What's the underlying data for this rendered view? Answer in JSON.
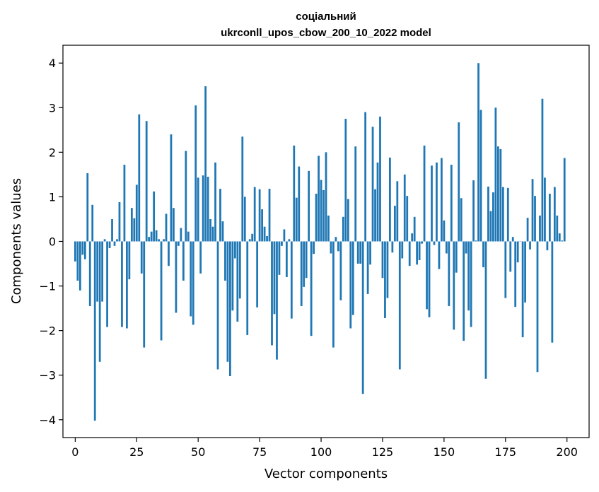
{
  "chart_data": {
    "type": "bar",
    "title": "соціальний",
    "subtitle": "ukrconll_upos_cbow_200_10_2022 model",
    "xlabel": "Vector components",
    "ylabel": "Components values",
    "xlim": [
      -5,
      209
    ],
    "ylim": [
      -4.4,
      4.4
    ],
    "xticks": [
      0,
      25,
      50,
      75,
      100,
      125,
      150,
      175,
      200
    ],
    "yticks": [
      -4,
      -3,
      -2,
      -1,
      0,
      1,
      2,
      3,
      4
    ],
    "color": "#1f77b4",
    "x_start": 0,
    "values": [
      -0.45,
      -0.88,
      -1.1,
      -0.3,
      -0.4,
      1.53,
      -1.45,
      0.82,
      -4.02,
      -1.35,
      -2.7,
      -1.35,
      0.05,
      -1.92,
      -0.15,
      0.5,
      -0.1,
      0.05,
      0.88,
      -1.92,
      1.72,
      -1.95,
      -0.85,
      0.75,
      0.52,
      1.27,
      2.85,
      -0.72,
      -2.38,
      2.7,
      0.1,
      0.22,
      1.12,
      0.25,
      0.05,
      -2.22,
      0.05,
      0.62,
      -0.55,
      2.4,
      0.75,
      -1.6,
      -0.1,
      0.3,
      -0.88,
      2.03,
      0.22,
      -1.68,
      -1.87,
      3.05,
      1.43,
      -0.72,
      1.48,
      3.48,
      1.45,
      0.5,
      0.33,
      1.77,
      -2.87,
      1.18,
      0.45,
      -0.88,
      -2.7,
      -3.02,
      -1.55,
      -0.38,
      -1.8,
      -1.28,
      2.35,
      1.0,
      -2.1,
      0.05,
      0.17,
      1.22,
      -1.48,
      1.17,
      0.72,
      0.33,
      0.12,
      1.18,
      -2.33,
      -1.63,
      -2.65,
      -0.75,
      -0.1,
      0.27,
      -0.8,
      0.05,
      -1.73,
      2.15,
      0.98,
      1.68,
      -1.45,
      -1.02,
      -0.82,
      1.58,
      -2.12,
      -0.28,
      1.07,
      1.92,
      1.38,
      1.15,
      2.0,
      0.58,
      -0.27,
      -2.38,
      0.1,
      -0.22,
      -1.32,
      0.55,
      2.75,
      0.95,
      -1.95,
      -1.65,
      2.13,
      -0.5,
      -0.5,
      -3.42,
      2.9,
      -1.18,
      -0.52,
      2.57,
      1.17,
      1.77,
      2.8,
      -0.82,
      -1.72,
      -1.27,
      1.88,
      -0.25,
      0.8,
      1.35,
      -2.87,
      -0.38,
      1.5,
      1.02,
      -0.55,
      0.18,
      0.55,
      -0.52,
      -0.42,
      -0.05,
      2.15,
      -1.52,
      -1.7,
      1.7,
      -0.08,
      1.77,
      -0.62,
      1.87,
      0.47,
      -0.27,
      -1.45,
      1.72,
      -1.98,
      -0.7,
      2.67,
      0.97,
      -2.23,
      -0.27,
      -1.55,
      -1.92,
      1.37,
      0.02,
      4.0,
      2.95,
      -0.58,
      -3.08,
      1.23,
      0.68,
      1.1,
      3.0,
      2.13,
      2.07,
      1.22,
      -1.27,
      1.2,
      -0.68,
      0.1,
      -1.47,
      -0.47,
      0.0,
      -2.15,
      -1.37,
      0.53,
      -0.18,
      1.4,
      1.02,
      -2.93,
      0.58,
      3.2,
      1.43,
      -0.2,
      1.07,
      -2.27,
      1.22,
      0.58,
      0.18,
      0.02,
      1.87
    ]
  }
}
